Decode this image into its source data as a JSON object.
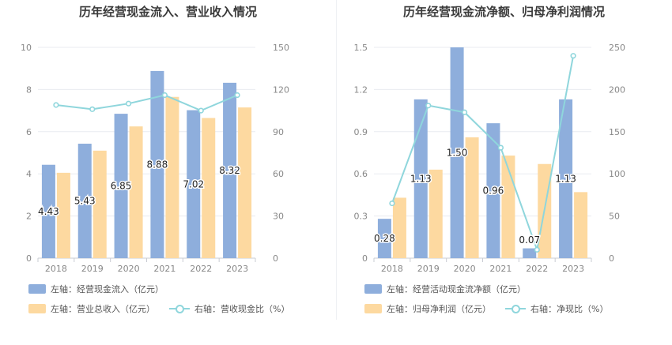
{
  "colors": {
    "bar_primary": "#8eaedc",
    "bar_secondary": "#fdd9a0",
    "line": "#8fd6dc",
    "axis_text": "#888888",
    "grid": "#e8ebf0"
  },
  "chart_data": [
    {
      "type": "bar",
      "title": "历年经营现金流入、营业收入情况",
      "categories": [
        "2018",
        "2019",
        "2020",
        "2021",
        "2022",
        "2023"
      ],
      "y_left": {
        "ticks": [
          "0",
          "2",
          "4",
          "6",
          "8",
          "10"
        ],
        "ylim": [
          0,
          10
        ]
      },
      "y_right": {
        "ticks": [
          "0",
          "30",
          "60",
          "90",
          "120",
          "150"
        ],
        "ylim": [
          0,
          150
        ]
      },
      "series": [
        {
          "name": "左轴：经营现金流入（亿元）",
          "kind": "bar",
          "axis": "left",
          "values": [
            4.43,
            5.43,
            6.85,
            8.88,
            7.02,
            8.32
          ],
          "value_labels": [
            "4.43",
            "5.43",
            "6.85",
            "8.88",
            "7.02",
            "8.32"
          ]
        },
        {
          "name": "左轴：营业总收入（亿元）",
          "kind": "bar",
          "axis": "left",
          "values": [
            4.05,
            5.1,
            6.25,
            7.65,
            6.65,
            7.15
          ]
        },
        {
          "name": "右轴：营收现金比（%）",
          "kind": "line",
          "axis": "right",
          "values": [
            109,
            106,
            110,
            116,
            105,
            116
          ]
        }
      ],
      "legend_rows": [
        [
          "左轴：经营现金流入（亿元）"
        ],
        [
          "左轴：营业总收入（亿元）",
          "右轴：营收现金比（%）"
        ]
      ]
    },
    {
      "type": "bar",
      "title": "历年经营现金流净额、归母净利润情况",
      "categories": [
        "2018",
        "2019",
        "2020",
        "2021",
        "2022",
        "2023"
      ],
      "y_left": {
        "ticks": [
          "0",
          "0.3",
          "0.6",
          "0.9",
          "1.2",
          "1.5"
        ],
        "ylim": [
          0,
          1.5
        ]
      },
      "y_right": {
        "ticks": [
          "0",
          "50",
          "100",
          "150",
          "200",
          "250"
        ],
        "ylim": [
          0,
          250
        ]
      },
      "series": [
        {
          "name": "左轴：经营活动现金流净额（亿元）",
          "kind": "bar",
          "axis": "left",
          "values": [
            0.28,
            1.13,
            1.5,
            0.96,
            0.07,
            1.13
          ],
          "value_labels": [
            "0.28",
            "1.13",
            "1.50",
            "0.96",
            "0.07",
            "1.13"
          ]
        },
        {
          "name": "左轴：归母净利润（亿元）",
          "kind": "bar",
          "axis": "left",
          "values": [
            0.43,
            0.63,
            0.86,
            0.73,
            0.67,
            0.47
          ]
        },
        {
          "name": "右轴：净现比（%）",
          "kind": "line",
          "axis": "right",
          "values": [
            65,
            181,
            173,
            131,
            10,
            240
          ]
        }
      ],
      "legend_rows": [
        [
          "左轴：经营活动现金流净额（亿元）"
        ],
        [
          "左轴：归母净利润（亿元）",
          "右轴：净现比（%）"
        ]
      ]
    }
  ]
}
